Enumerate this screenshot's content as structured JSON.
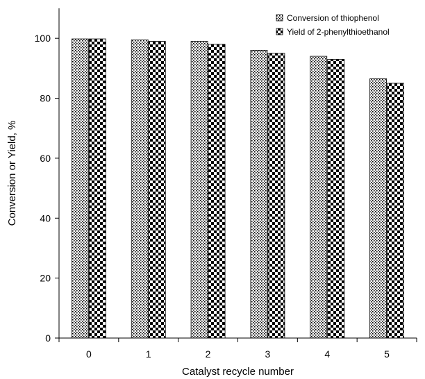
{
  "chart_data": {
    "type": "bar",
    "categories": [
      "0",
      "1",
      "2",
      "3",
      "4",
      "5"
    ],
    "series": [
      {
        "name": "Conversion of thiophenol",
        "values": [
          99.8,
          99.5,
          99.0,
          96.0,
          94.0,
          86.5
        ],
        "pattern": "fine-check"
      },
      {
        "name": "Yield of 2-phenylthioethanol",
        "values": [
          99.8,
          99.0,
          98.0,
          95.0,
          93.0,
          85.0
        ],
        "pattern": "coarse-check"
      }
    ],
    "xlabel": "Catalyst recycle number",
    "ylabel": "Conversion or Yield, %",
    "ylim": [
      0,
      110
    ],
    "yticks": [
      0,
      20,
      40,
      60,
      80,
      100
    ],
    "grid": false,
    "legend_position": "top-right",
    "colors": {
      "axis": "#000000",
      "pattern_dark": "#000000",
      "pattern_light": "#ffffff"
    }
  }
}
